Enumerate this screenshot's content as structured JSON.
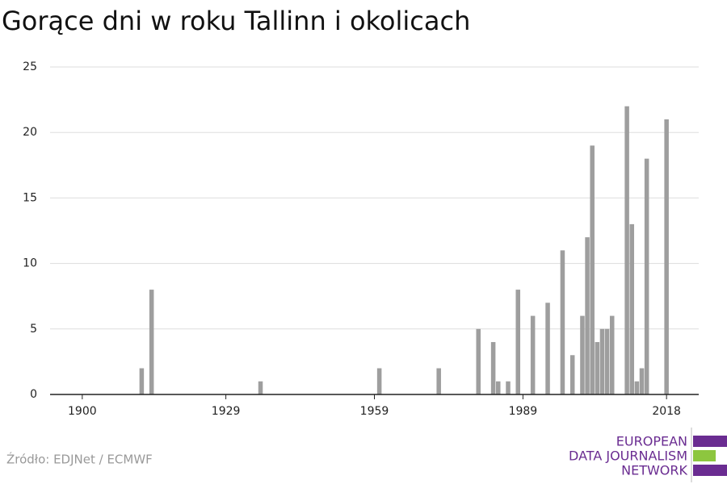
{
  "chart_data": {
    "type": "bar",
    "title": "Gorące dni w roku Tallinn i okolicach",
    "x": [
      1912,
      1914,
      1936,
      1960,
      1972,
      1980,
      1983,
      1984,
      1986,
      1988,
      1991,
      1994,
      1997,
      1999,
      2001,
      2002,
      2003,
      2004,
      2005,
      2006,
      2007,
      2010,
      2011,
      2012,
      2013,
      2014,
      2018
    ],
    "values": [
      2,
      8,
      1,
      2,
      2,
      5,
      4,
      1,
      1,
      8,
      6,
      7,
      11,
      3,
      6,
      12,
      19,
      4,
      5,
      5,
      6,
      22,
      13,
      1,
      2,
      18,
      21
    ],
    "color": "#9e9e9e",
    "xlim": [
      1893.5,
      2024.5
    ],
    "xticks": [
      1900,
      1929,
      1959,
      1989,
      2018
    ],
    "ylim": [
      0,
      25
    ],
    "yticks": [
      0,
      5,
      10,
      15,
      20,
      25
    ],
    "grid": true
  },
  "source": "Źródło: EDJNet / ECMWF",
  "logo": {
    "lines": [
      "EUROPEAN",
      "DATA JOURNALISM",
      "NETWORK"
    ]
  }
}
